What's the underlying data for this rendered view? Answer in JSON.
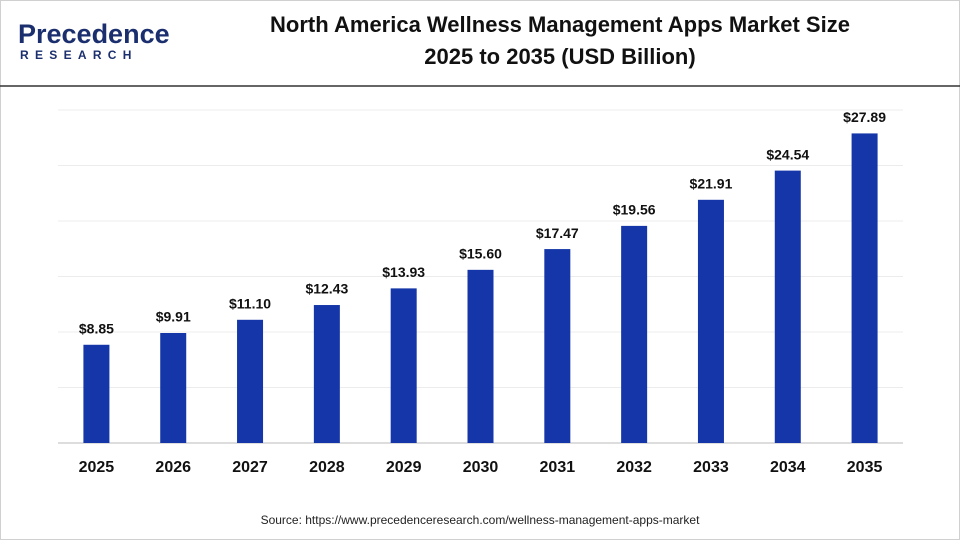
{
  "logo": {
    "name": "Precedence",
    "sub": "RESEARCH"
  },
  "chart_data": {
    "type": "bar",
    "title": "North America Wellness Management Apps Market Size",
    "subtitle": "2025 to 2035 (USD Billion)",
    "categories": [
      "2025",
      "2026",
      "2027",
      "2028",
      "2029",
      "2030",
      "2031",
      "2032",
      "2033",
      "2034",
      "2035"
    ],
    "values": [
      8.85,
      9.91,
      11.1,
      12.43,
      13.93,
      15.6,
      17.47,
      19.56,
      21.91,
      24.54,
      27.89
    ],
    "value_labels": [
      "$8.85",
      "$9.91",
      "$11.10",
      "$12.43",
      "$13.93",
      "$15.60",
      "$17.47",
      "$19.56",
      "$21.91",
      "$24.54",
      "$27.89"
    ],
    "color": "#1436a8",
    "ylim": [
      0,
      30
    ],
    "yticks": [
      0,
      5,
      10,
      15,
      20,
      25,
      30
    ],
    "grid": true,
    "source": "Source: https://www.precedenceresearch.com/wellness-management-apps-market"
  }
}
